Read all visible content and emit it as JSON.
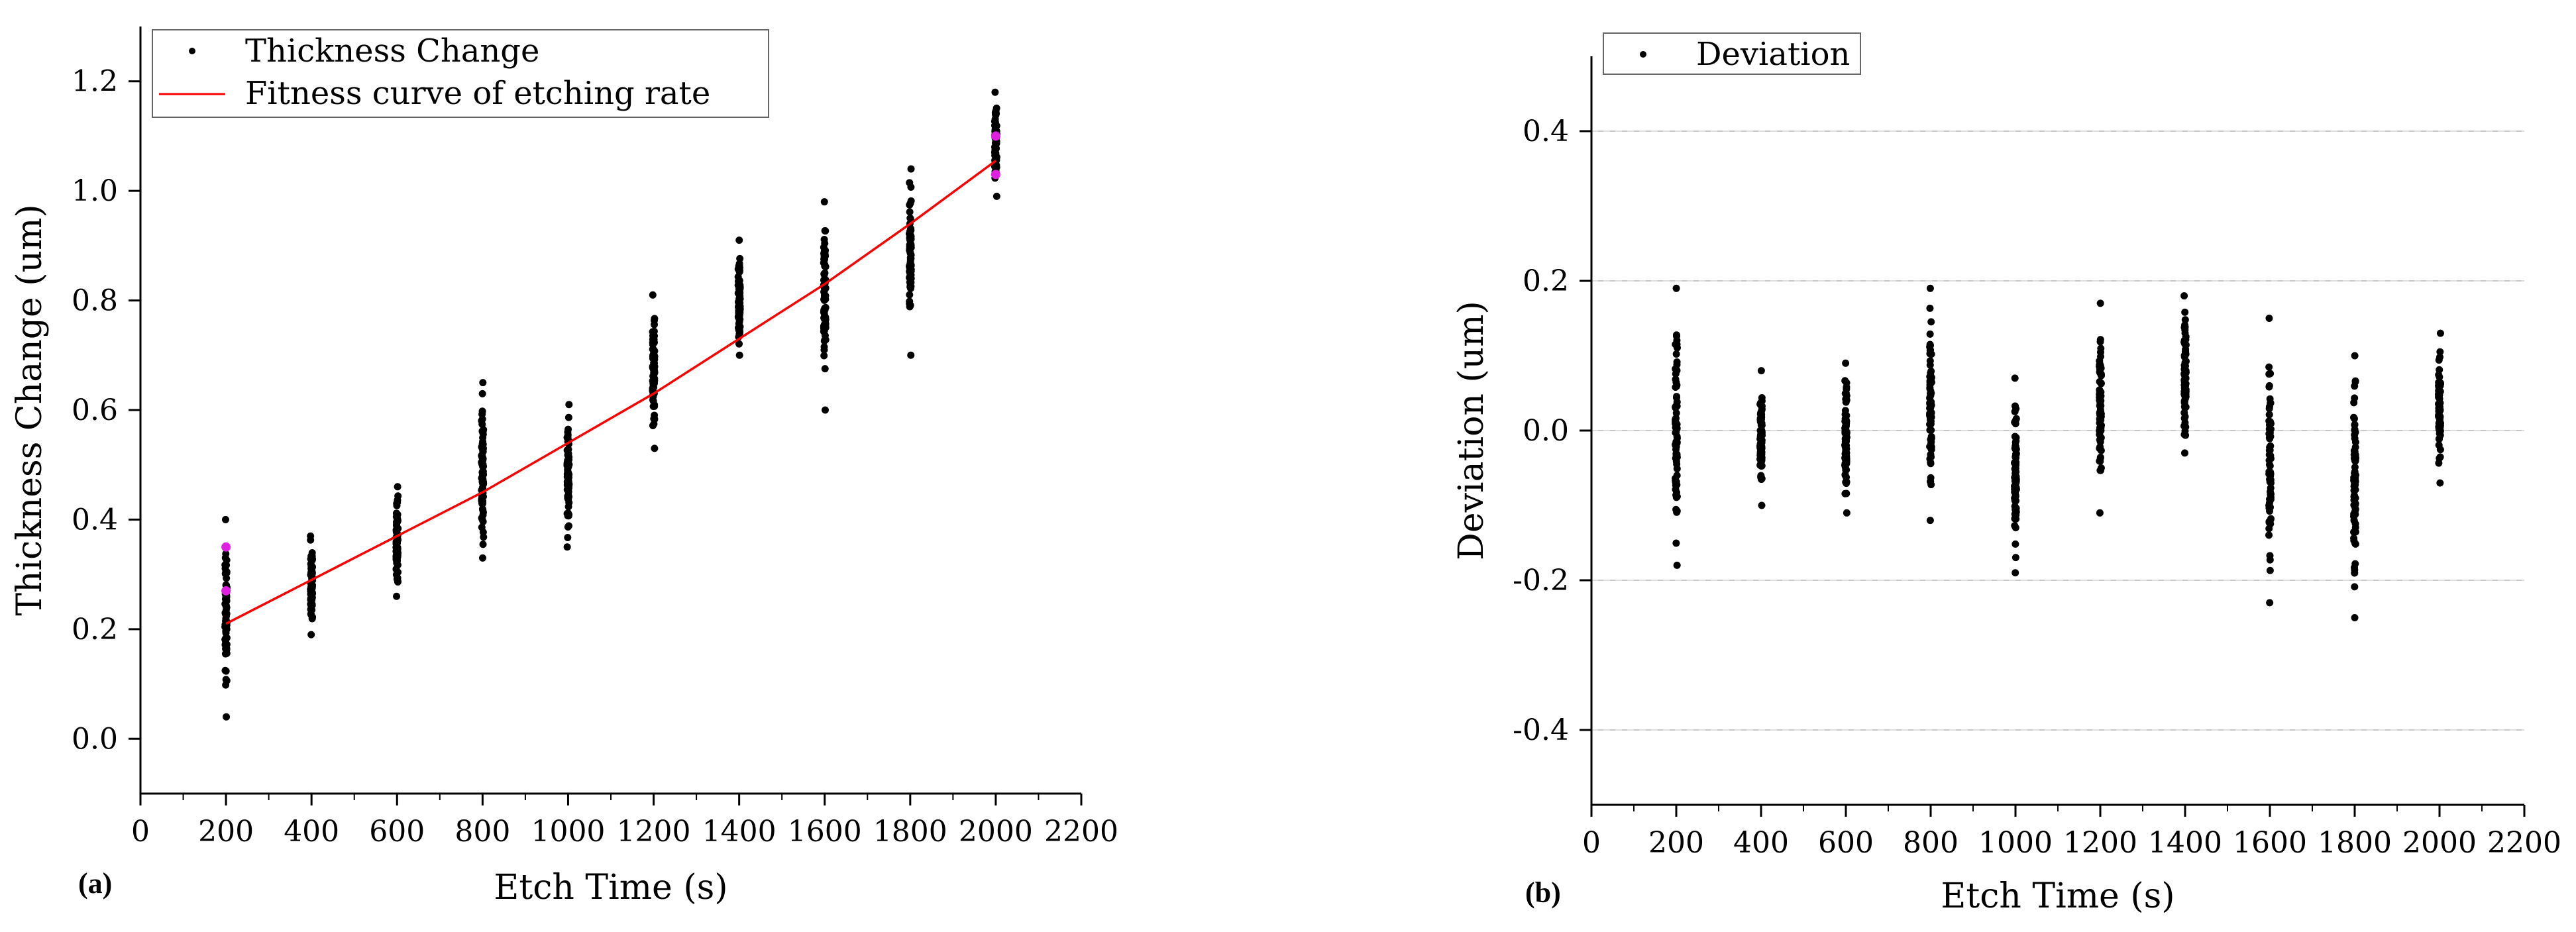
{
  "chart_data": [
    {
      "type": "scatter",
      "panel_label": "(a)",
      "title": "",
      "xlabel": "Etch Time (s)",
      "ylabel": "Thickness Change (um)",
      "xlim": [
        0,
        2200
      ],
      "ylim": [
        -0.1,
        1.3
      ],
      "xticks": [
        "0",
        "200",
        "400",
        "600",
        "800",
        "1000",
        "1200",
        "1400",
        "1600",
        "1800",
        "2000",
        "2200"
      ],
      "yticks": [
        "0.0",
        "0.2",
        "0.4",
        "0.6",
        "0.8",
        "1.0",
        "1.2"
      ],
      "grid": false,
      "legend_position": "top-left",
      "series": [
        {
          "name": "Thickness Change",
          "kind": "scatter",
          "color": "#000000",
          "groups": [
            {
              "x": 200,
              "min": 0.04,
              "max": 0.4
            },
            {
              "x": 400,
              "min": 0.19,
              "max": 0.37
            },
            {
              "x": 600,
              "min": 0.26,
              "max": 0.46
            },
            {
              "x": 800,
              "min": 0.33,
              "max": 0.65
            },
            {
              "x": 1000,
              "min": 0.35,
              "max": 0.61
            },
            {
              "x": 1200,
              "min": 0.53,
              "max": 0.81
            },
            {
              "x": 1400,
              "min": 0.7,
              "max": 0.91
            },
            {
              "x": 1600,
              "min": 0.6,
              "max": 0.98
            },
            {
              "x": 1800,
              "min": 0.7,
              "max": 1.04
            },
            {
              "x": 2000,
              "min": 0.99,
              "max": 1.18
            }
          ],
          "highlighted_points": {
            "color": "#e020e0",
            "points": [
              {
                "x": 200,
                "y": 0.27
              },
              {
                "x": 200,
                "y": 0.35
              },
              {
                "x": 2000,
                "y": 1.03
              },
              {
                "x": 2000,
                "y": 1.1
              }
            ]
          }
        },
        {
          "name": "Fitness curve of etching rate",
          "kind": "line",
          "color": "#ff0000",
          "x": [
            200,
            400,
            600,
            800,
            1000,
            1200,
            1400,
            1600,
            1800,
            2000
          ],
          "y": [
            0.21,
            0.29,
            0.37,
            0.45,
            0.54,
            0.63,
            0.73,
            0.83,
            0.94,
            1.055
          ]
        }
      ]
    },
    {
      "type": "scatter",
      "panel_label": "(b)",
      "title": "",
      "xlabel": "Etch Time (s)",
      "ylabel": "Deviation (um)",
      "xlim": [
        0,
        2200
      ],
      "ylim": [
        -0.5,
        0.5
      ],
      "xticks": [
        "0",
        "200",
        "400",
        "600",
        "800",
        "1000",
        "1200",
        "1400",
        "1600",
        "1800",
        "2000",
        "2200"
      ],
      "yticks": [
        "-0.4",
        "-0.2",
        "0.0",
        "0.2",
        "0.4"
      ],
      "grid": true,
      "legend_position": "top-left",
      "series": [
        {
          "name": "Deviation",
          "kind": "scatter",
          "color": "#000000",
          "groups": [
            {
              "x": 200,
              "min": -0.18,
              "max": 0.19
            },
            {
              "x": 400,
              "min": -0.1,
              "max": 0.08
            },
            {
              "x": 600,
              "min": -0.11,
              "max": 0.09
            },
            {
              "x": 800,
              "min": -0.12,
              "max": 0.19
            },
            {
              "x": 1000,
              "min": -0.19,
              "max": 0.07
            },
            {
              "x": 1200,
              "min": -0.11,
              "max": 0.17
            },
            {
              "x": 1400,
              "min": -0.03,
              "max": 0.18
            },
            {
              "x": 1600,
              "min": -0.23,
              "max": 0.15
            },
            {
              "x": 1800,
              "min": -0.25,
              "max": 0.1
            },
            {
              "x": 2000,
              "min": -0.07,
              "max": 0.13
            }
          ]
        }
      ]
    }
  ]
}
